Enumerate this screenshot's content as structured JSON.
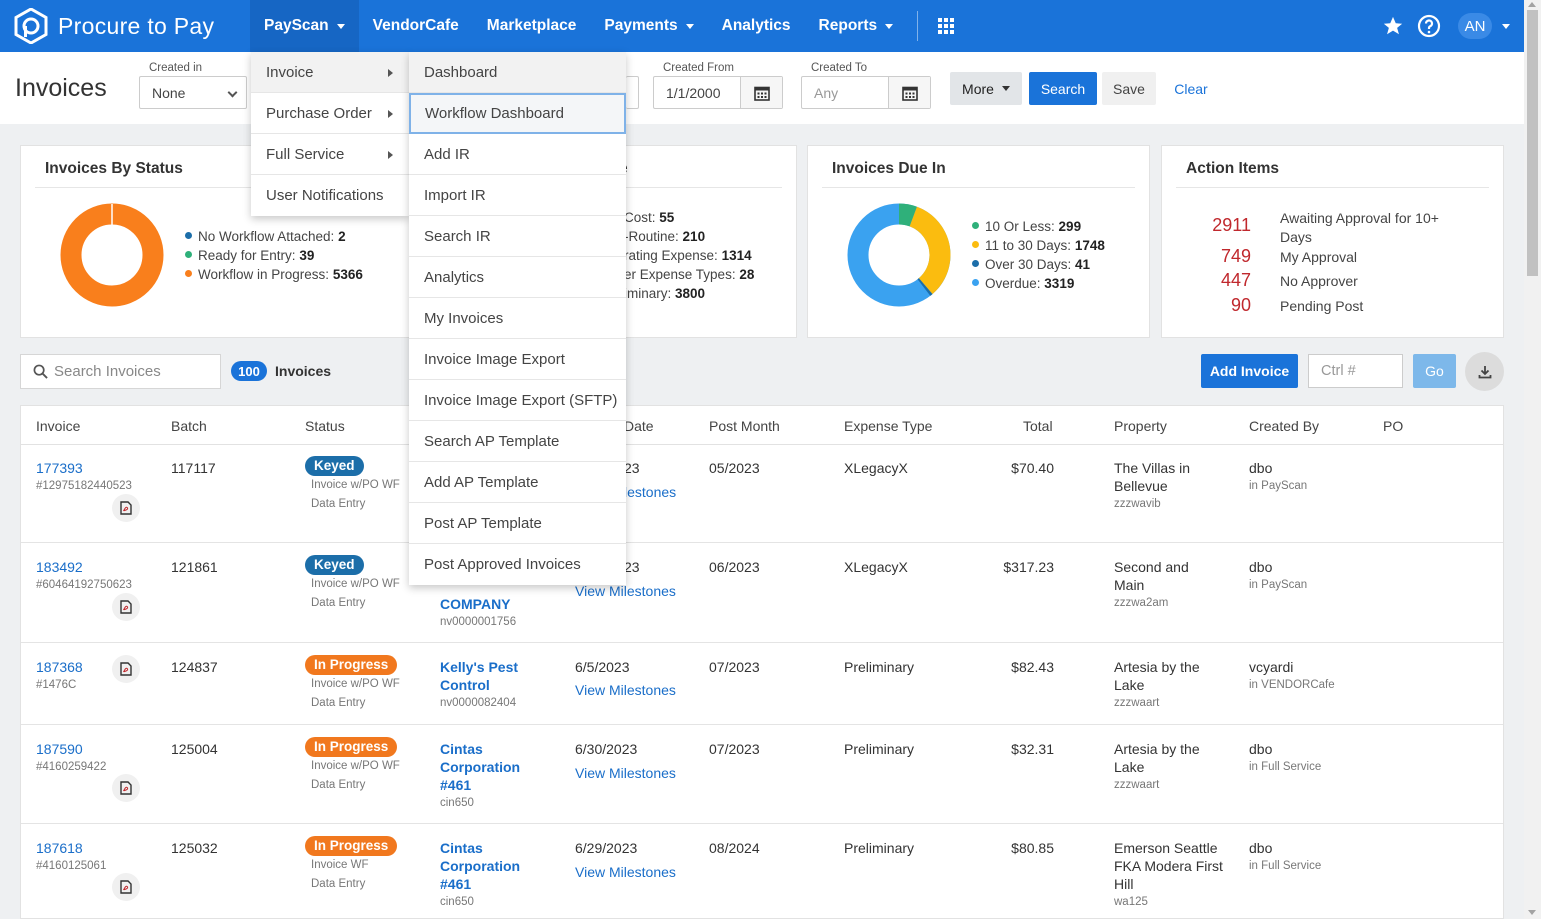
{
  "nav": {
    "brand": "Procure to Pay",
    "items": [
      "PayScan",
      "VendorCafe",
      "Marketplace",
      "Payments",
      "Analytics",
      "Reports"
    ],
    "avatar": "AN"
  },
  "filters": {
    "page_title": "Invoices",
    "created_in_label": "Created in",
    "created_in_value": "None",
    "created_from_label": "Created From",
    "created_from_value": "1/1/2000",
    "created_to_label": "Created To",
    "created_to_placeholder": "Any",
    "more": "More",
    "search": "Search",
    "save": "Save",
    "clear": "Clear"
  },
  "cards": {
    "status": {
      "title": "Invoices By Status",
      "items": [
        {
          "label": "No Workflow Attached:",
          "value": "2",
          "color": "#1c6ea9"
        },
        {
          "label": "Ready for Entry:",
          "value": "39",
          "color": "#2fb07a"
        },
        {
          "label": "Workflow in Progress:",
          "value": "5366",
          "color": "#f97f1c"
        }
      ]
    },
    "expense": {
      "title_partial": "e",
      "items": [
        {
          "label": "Cost:",
          "value": "55"
        },
        {
          "label": "-Routine:",
          "value": "210"
        },
        {
          "label": "rating Expense:",
          "value": "1314"
        },
        {
          "label": "er Expense Types:",
          "value": "28"
        },
        {
          "label": "iminary:",
          "value": "3800"
        }
      ]
    },
    "due": {
      "title": "Invoices Due In",
      "items": [
        {
          "label": "10 Or Less:",
          "value": "299",
          "color": "#2fb07a"
        },
        {
          "label": "11 to 30 Days:",
          "value": "1748",
          "color": "#fbbc0f"
        },
        {
          "label": "Over 30 Days:",
          "value": "41",
          "color": "#1c6ea9"
        },
        {
          "label": "Overdue:",
          "value": "3319",
          "color": "#3aa2f0"
        }
      ]
    },
    "actions": {
      "title": "Action Items",
      "items": [
        {
          "num": "2911",
          "label": "Awaiting Approval for 10+ Days"
        },
        {
          "num": "749",
          "label": "My Approval"
        },
        {
          "num": "447",
          "label": "No Approver"
        },
        {
          "num": "90",
          "label": "Pending Post"
        }
      ]
    }
  },
  "toolbar": {
    "search_placeholder": "Search Invoices",
    "count": "100",
    "count_label": "Invoices",
    "add_invoice": "Add Invoice",
    "ctrl_placeholder": "Ctrl #",
    "go": "Go"
  },
  "table": {
    "headers": [
      "Invoice",
      "Batch",
      "Status",
      "Date",
      "Post Month",
      "Expense Type",
      "Total",
      "Property",
      "Created By",
      "PO"
    ],
    "rows": [
      {
        "invoice": "177393",
        "ref": "#12975182440523",
        "batch": "117117",
        "status": "Keyed",
        "wf": "Invoice w/PO WF",
        "stage": "Data Entry",
        "vendor": "",
        "vendor_code": "",
        "date": "23",
        "milestones": "lestones",
        "post_month": "05/2023",
        "expense": "XLegacyX",
        "total": "$70.40",
        "property": "The Villas in Bellevue",
        "prop_code": "zzzwavib",
        "created_by": "dbo",
        "created_in": "in PayScan"
      },
      {
        "invoice": "183492",
        "ref": "#60464192750623",
        "batch": "121861",
        "status": "Keyed",
        "wf": "Invoice w/PO WF",
        "stage": "Data Entry",
        "vendor": "COMPANY",
        "vendor_code": "nv0000001756",
        "date": "23",
        "milestones": "View Milestones",
        "post_month": "06/2023",
        "expense": "XLegacyX",
        "total": "$317.23",
        "property": "Second and Main",
        "prop_code": "zzzwa2am",
        "created_by": "dbo",
        "created_in": "in PayScan"
      },
      {
        "invoice": "187368",
        "ref": "#1476C",
        "batch": "124837",
        "status": "In Progress",
        "wf": "Invoice w/PO WF",
        "stage": "Data Entry",
        "vendor": "Kelly's Pest Control",
        "vendor_code": "nv0000082404",
        "date": "6/5/2023",
        "milestones": "View Milestones",
        "post_month": "07/2023",
        "expense": "Preliminary",
        "total": "$82.43",
        "property": "Artesia by the Lake",
        "prop_code": "zzzwaart",
        "created_by": "vcyardi",
        "created_in": "in VENDORCafe"
      },
      {
        "invoice": "187590",
        "ref": "#4160259422",
        "batch": "125004",
        "status": "In Progress",
        "wf": "Invoice w/PO WF",
        "stage": "Data Entry",
        "vendor": "Cintas Corporation #461",
        "vendor_code": "cin650",
        "date": "6/30/2023",
        "milestones": "View Milestones",
        "post_month": "07/2023",
        "expense": "Preliminary",
        "total": "$32.31",
        "property": "Artesia by the Lake",
        "prop_code": "zzzwaart",
        "created_by": "dbo",
        "created_in": "in Full Service"
      },
      {
        "invoice": "187618",
        "ref": "#4160125061",
        "batch": "125032",
        "status": "In Progress",
        "wf": "Invoice WF",
        "stage": "Data Entry",
        "vendor": "Cintas Corporation #461",
        "vendor_code": "cin650",
        "date": "6/29/2023",
        "milestones": "View Milestones",
        "post_month": "08/2024",
        "expense": "Preliminary",
        "total": "$80.85",
        "property": "Emerson Seattle FKA Modera First Hill",
        "prop_code": "wa125",
        "created_by": "dbo",
        "created_in": "in Full Service"
      }
    ]
  },
  "menu_payscan": {
    "items": [
      "Invoice",
      "Purchase Order",
      "Full Service",
      "User Notifications"
    ]
  },
  "menu_invoice": {
    "items": [
      "Dashboard",
      "Workflow Dashboard",
      "Add IR",
      "Import IR",
      "Search IR",
      "Analytics",
      "My Invoices",
      "Invoice Image Export",
      "Invoice Image Export (SFTP)",
      "Search AP Template",
      "Add AP Template",
      "Post AP Template",
      "Post Approved Invoices"
    ]
  },
  "colors": {
    "primary": "#1a73d9",
    "keyed": "#1c6ea9",
    "in_progress": "#f1781e",
    "action_number": "#c0282d"
  }
}
